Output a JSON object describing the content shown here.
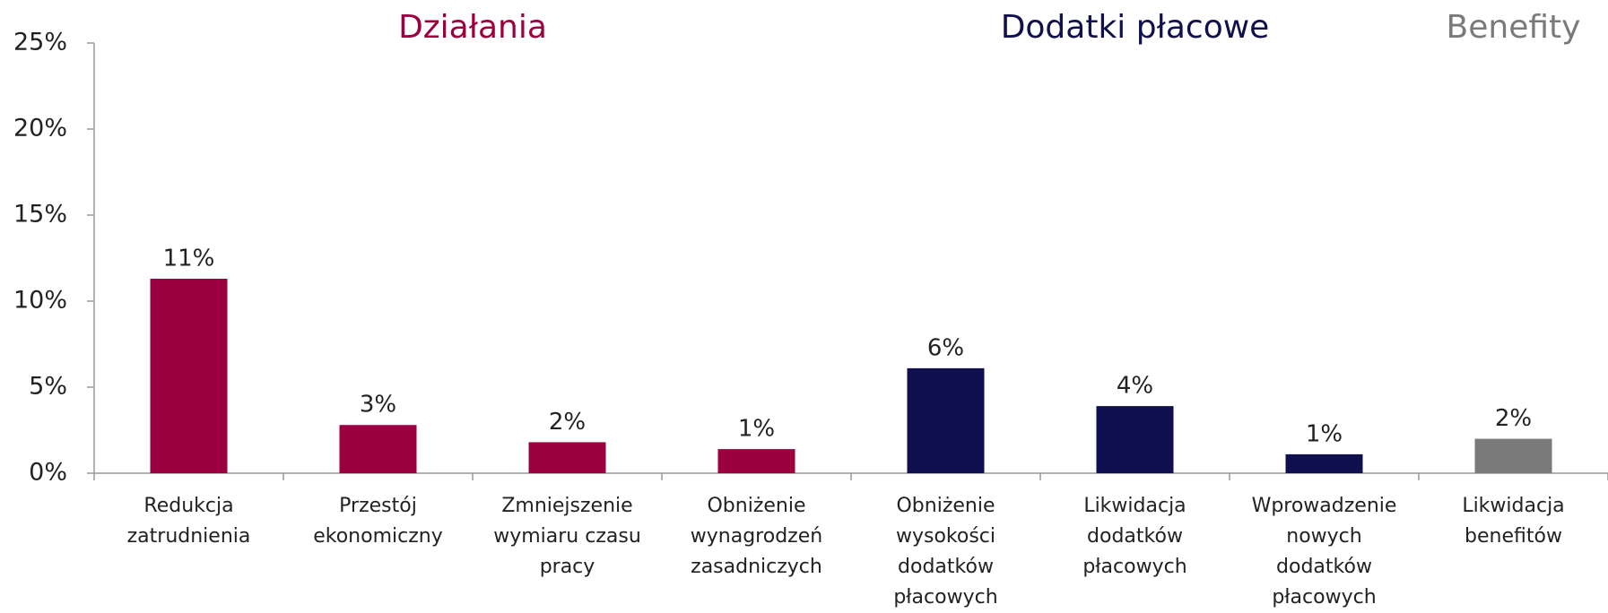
{
  "chart_data": {
    "type": "bar",
    "ylim": [
      0,
      25
    ],
    "yticks": [
      {
        "value": 0,
        "label": "0%"
      },
      {
        "value": 5,
        "label": "5%"
      },
      {
        "value": 10,
        "label": "10%"
      },
      {
        "value": 15,
        "label": "15%"
      },
      {
        "value": 20,
        "label": "20%"
      },
      {
        "value": 25,
        "label": "25%"
      }
    ],
    "groups": [
      {
        "name": "Działania",
        "color": "#9b0040",
        "categories": [
          "Redukcja\nzatrudnienia",
          "Przestój\nekonomiczny",
          "Zmniejszenie\nwymiaru czasu\npracy",
          "Obniżenie\nwynagrodzeń\nzasadniczych"
        ],
        "values": [
          11.3,
          2.8,
          1.8,
          1.4
        ],
        "value_labels": [
          "11%",
          "3%",
          "2%",
          "1%"
        ]
      },
      {
        "name": "Dodatki płacowe",
        "color": "#10104e",
        "categories": [
          "Obniżenie\nwysokości\ndodatków\npłacowych",
          "Likwidacja\ndodatków\npłacowych",
          "Wprowadzenie\nnowych\ndodatków\npłacowych"
        ],
        "values": [
          6.1,
          3.9,
          1.1
        ],
        "value_labels": [
          "6%",
          "4%",
          "1%"
        ]
      },
      {
        "name": "Benefity",
        "color": "#7a7a7a",
        "categories": [
          "Likwidacja\nbenefitów"
        ],
        "values": [
          2.0
        ],
        "value_labels": [
          "2%"
        ]
      }
    ]
  }
}
